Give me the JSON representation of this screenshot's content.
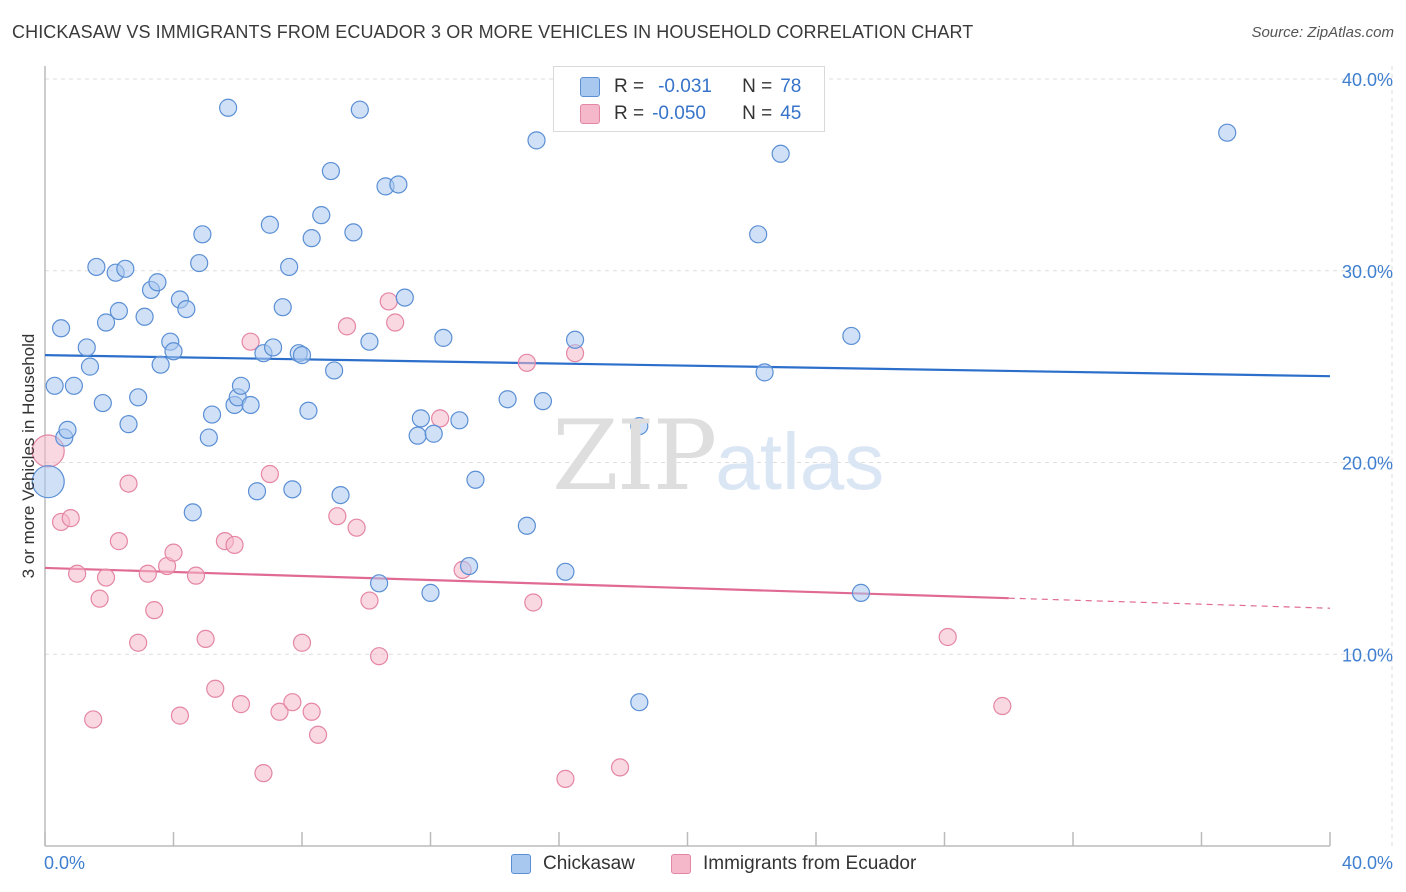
{
  "title": "CHICKASAW VS IMMIGRANTS FROM ECUADOR 3 OR MORE VEHICLES IN HOUSEHOLD CORRELATION CHART",
  "source": "Source: ZipAtlas.com",
  "watermark": {
    "zip": "ZIP",
    "atlas": "atlas"
  },
  "legend_stats": [
    {
      "r_label": "R =",
      "r_value": "-0.031",
      "n_label": "N =",
      "n_value": "78",
      "color": "#a9c8f0"
    },
    {
      "r_label": "R =",
      "r_value": "-0.050",
      "n_label": "N =",
      "n_value": "45",
      "color": "#f5b8cb"
    }
  ],
  "colors": {
    "blue_fill": "#a9c8f0",
    "blue_stroke": "#5b8fd4",
    "blue_line": "#2c6fcb",
    "pink_fill": "#f5b8cb",
    "pink_stroke": "#e486a4",
    "pink_line": "#e06a94",
    "grid": "#dddddd",
    "tick_text": "#3f7fd0"
  },
  "chart_data": {
    "type": "scatter",
    "title": "CHICKASAW VS IMMIGRANTS FROM ECUADOR 3 OR MORE VEHICLES IN HOUSEHOLD CORRELATION CHART",
    "xlabel": "",
    "ylabel": "3 or more Vehicles in Household",
    "xlim": [
      0,
      40
    ],
    "ylim": [
      0,
      40
    ],
    "x_tick_labels": [
      "0.0%",
      "40.0%"
    ],
    "y_ticks": [
      10,
      20,
      30,
      40
    ],
    "y_tick_labels": [
      "10.0%",
      "20.0%",
      "30.0%",
      "40.0%"
    ],
    "grid": true,
    "legend_position": "bottom",
    "series": [
      {
        "name": "Chickasaw",
        "color": "#a9c8f0",
        "trend": {
          "x": [
            0,
            40
          ],
          "y": [
            25.6,
            24.5
          ],
          "dashed_from": null
        },
        "points": [
          [
            0.1,
            19.0
          ],
          [
            0.3,
            24.0
          ],
          [
            0.5,
            27.0
          ],
          [
            0.6,
            21.3
          ],
          [
            0.7,
            21.7
          ],
          [
            0.9,
            24.0
          ],
          [
            1.3,
            26.0
          ],
          [
            1.4,
            25.0
          ],
          [
            1.6,
            30.2
          ],
          [
            1.8,
            23.1
          ],
          [
            1.9,
            27.3
          ],
          [
            2.2,
            29.9
          ],
          [
            2.3,
            27.9
          ],
          [
            2.5,
            30.1
          ],
          [
            2.6,
            22.0
          ],
          [
            2.9,
            23.4
          ],
          [
            3.1,
            27.6
          ],
          [
            3.3,
            29.0
          ],
          [
            3.5,
            29.4
          ],
          [
            3.6,
            25.1
          ],
          [
            3.9,
            26.3
          ],
          [
            4.0,
            25.8
          ],
          [
            4.2,
            28.5
          ],
          [
            4.4,
            28.0
          ],
          [
            4.6,
            17.4
          ],
          [
            4.8,
            30.4
          ],
          [
            4.9,
            31.9
          ],
          [
            5.1,
            21.3
          ],
          [
            5.2,
            22.5
          ],
          [
            5.7,
            38.5
          ],
          [
            5.9,
            23.0
          ],
          [
            6.0,
            23.4
          ],
          [
            6.1,
            24.0
          ],
          [
            6.4,
            23.0
          ],
          [
            6.6,
            18.5
          ],
          [
            6.8,
            25.7
          ],
          [
            7.0,
            32.4
          ],
          [
            7.1,
            26.0
          ],
          [
            7.4,
            28.1
          ],
          [
            7.6,
            30.2
          ],
          [
            7.7,
            18.6
          ],
          [
            7.9,
            25.7
          ],
          [
            8.0,
            25.6
          ],
          [
            8.2,
            22.7
          ],
          [
            8.3,
            31.7
          ],
          [
            8.6,
            32.9
          ],
          [
            8.9,
            35.2
          ],
          [
            9.0,
            24.8
          ],
          [
            9.2,
            18.3
          ],
          [
            9.6,
            32.0
          ],
          [
            9.8,
            38.4
          ],
          [
            10.1,
            26.3
          ],
          [
            10.4,
            13.7
          ],
          [
            10.6,
            34.4
          ],
          [
            11.0,
            34.5
          ],
          [
            11.2,
            28.6
          ],
          [
            11.6,
            21.4
          ],
          [
            11.7,
            22.3
          ],
          [
            12.0,
            13.2
          ],
          [
            12.1,
            21.5
          ],
          [
            12.4,
            26.5
          ],
          [
            12.9,
            22.2
          ],
          [
            13.2,
            14.6
          ],
          [
            13.4,
            19.1
          ],
          [
            14.4,
            23.3
          ],
          [
            15.0,
            16.7
          ],
          [
            15.3,
            36.8
          ],
          [
            15.5,
            23.2
          ],
          [
            16.2,
            14.3
          ],
          [
            16.5,
            26.4
          ],
          [
            18.5,
            21.9
          ],
          [
            18.5,
            7.5
          ],
          [
            22.2,
            31.9
          ],
          [
            22.4,
            24.7
          ],
          [
            22.9,
            36.1
          ],
          [
            25.1,
            26.6
          ],
          [
            25.4,
            13.2
          ],
          [
            36.8,
            37.2
          ]
        ]
      },
      {
        "name": "Immigrants from Ecuador",
        "color": "#f5b8cb",
        "trend": {
          "x": [
            0,
            40
          ],
          "y": [
            14.5,
            12.4
          ],
          "dashed_from": 30
        },
        "points": [
          [
            0.1,
            20.6
          ],
          [
            0.5,
            16.9
          ],
          [
            0.8,
            17.1
          ],
          [
            1.0,
            14.2
          ],
          [
            1.5,
            6.6
          ],
          [
            1.7,
            12.9
          ],
          [
            1.9,
            14.0
          ],
          [
            2.3,
            15.9
          ],
          [
            2.6,
            18.9
          ],
          [
            2.9,
            10.6
          ],
          [
            3.2,
            14.2
          ],
          [
            3.4,
            12.3
          ],
          [
            3.8,
            14.6
          ],
          [
            4.0,
            15.3
          ],
          [
            4.2,
            6.8
          ],
          [
            4.7,
            14.1
          ],
          [
            5.0,
            10.8
          ],
          [
            5.3,
            8.2
          ],
          [
            5.6,
            15.9
          ],
          [
            5.9,
            15.7
          ],
          [
            6.1,
            7.4
          ],
          [
            6.4,
            26.3
          ],
          [
            6.8,
            3.8
          ],
          [
            7.0,
            19.4
          ],
          [
            7.3,
            7.0
          ],
          [
            7.7,
            7.5
          ],
          [
            8.0,
            10.6
          ],
          [
            8.3,
            7.0
          ],
          [
            8.5,
            5.8
          ],
          [
            9.1,
            17.2
          ],
          [
            9.4,
            27.1
          ],
          [
            9.7,
            16.6
          ],
          [
            10.1,
            12.8
          ],
          [
            10.4,
            9.9
          ],
          [
            10.7,
            28.4
          ],
          [
            10.9,
            27.3
          ],
          [
            12.3,
            22.3
          ],
          [
            13.0,
            14.4
          ],
          [
            15.0,
            25.2
          ],
          [
            15.2,
            12.7
          ],
          [
            16.2,
            3.5
          ],
          [
            16.5,
            25.7
          ],
          [
            17.9,
            4.1
          ],
          [
            28.1,
            10.9
          ],
          [
            29.8,
            7.3
          ]
        ]
      }
    ]
  }
}
